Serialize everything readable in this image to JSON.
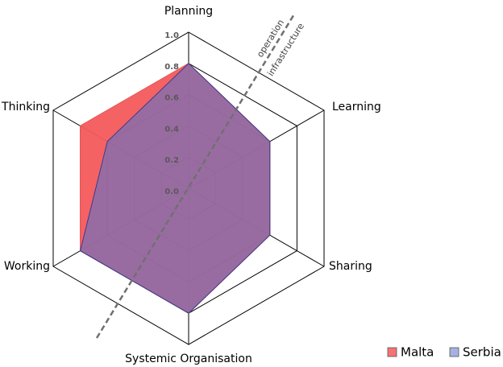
{
  "chart_data": {
    "type": "radar",
    "categories": [
      "Planning",
      "Learning",
      "Sharing",
      "Systemic Organisation",
      "Working",
      "Thinking"
    ],
    "series": [
      {
        "name": "Malta",
        "color": "#f45a5c",
        "values": [
          0.8,
          0.6,
          0.6,
          0.8,
          0.8,
          0.8
        ]
      },
      {
        "name": "Serbia",
        "color": "#5b73c9",
        "values": [
          0.8,
          0.6,
          0.6,
          0.8,
          0.8,
          0.6
        ]
      }
    ],
    "rlim": [
      0,
      1
    ],
    "rticks": [
      {
        "value": 0,
        "label": "0.0"
      },
      0.2,
      0.4,
      0.6,
      0.8,
      {
        "value": 1,
        "label": "1.0"
      }
    ],
    "annotations": [
      "operation",
      "infrastructure"
    ],
    "legend": "bottom-right"
  }
}
